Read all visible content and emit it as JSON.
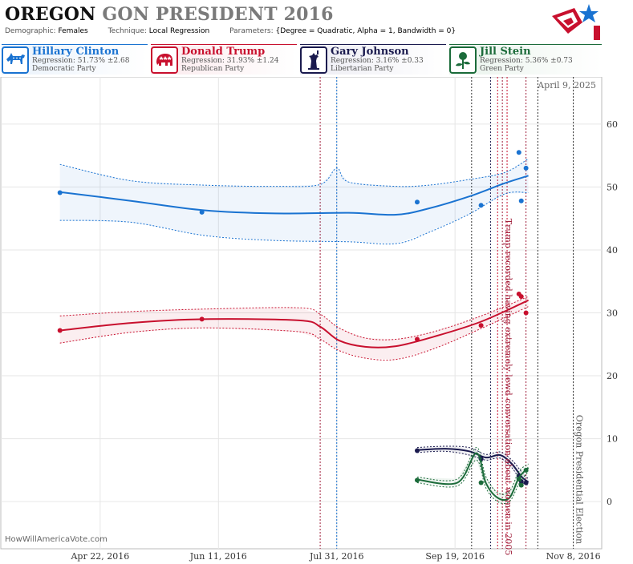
{
  "title": {
    "state": "OREGON",
    "rest": "GON PRESIDENT 2016"
  },
  "params": {
    "demographic_label": "Demographic:",
    "demographic": "Females",
    "technique_label": "Technique:",
    "technique": "Local Regression",
    "parameters_label": "Parameters:",
    "parameters": "{Degree = Quadratic, Alpha = 1, Bandwidth = 0}"
  },
  "candidates": [
    {
      "name": "Hillary Clinton",
      "regression": "Regression: 51.73% ±2.68",
      "party": "Democratic Party",
      "color": "#1a73d1",
      "bg": "#eaf2fb",
      "icon": "donkey-icon"
    },
    {
      "name": "Donald Trump",
      "regression": "Regression: 31.93% ±1.24",
      "party": "Republican Party",
      "color": "#c8102e",
      "bg": "#fbeaed",
      "icon": "elephant-icon"
    },
    {
      "name": "Gary Johnson",
      "regression": "Regression: 3.16% ±0.33",
      "party": "Libertarian Party",
      "color": "#1a1a4e",
      "bg": "#ececf3",
      "icon": "liberty-icon"
    },
    {
      "name": "Jill Stein",
      "regression": "Regression: 5.36% ±0.73",
      "party": "Green Party",
      "color": "#1b6b3a",
      "bg": "#e9f3ec",
      "icon": "rose-icon"
    }
  ],
  "watermark": "HowWillAmericaVote.com",
  "current_date": "April 9, 2025",
  "chart_data": {
    "type": "line",
    "x_axis": {
      "type": "date",
      "ticks": [
        "2016-04-22",
        "2016-06-11",
        "2016-07-31",
        "2016-09-19",
        "2016-11-08"
      ],
      "tick_labels": [
        "Apr 22, 2016",
        "Jun 11, 2016",
        "Jul 31, 2016",
        "Sep 19, 2016",
        "Nov 8, 2016"
      ],
      "range": [
        "2016-03-11",
        "2016-11-20"
      ]
    },
    "y_axis": {
      "ticks": [
        0,
        10,
        20,
        30,
        40,
        50,
        60
      ],
      "range": [
        -7.5,
        67.5
      ],
      "position": "right"
    },
    "grid": true,
    "series": [
      {
        "name": "Hillary Clinton",
        "color": "#1a73d1",
        "points": [
          [
            "2016-04-05",
            49.1
          ],
          [
            "2016-06-04",
            46.0
          ],
          [
            "2016-09-03",
            47.6
          ],
          [
            "2016-09-30",
            47.1
          ],
          [
            "2016-10-16",
            55.5
          ],
          [
            "2016-10-17",
            47.8
          ],
          [
            "2016-10-19",
            53.0
          ]
        ],
        "fit": [
          [
            "2016-04-05",
            49.2
          ],
          [
            "2016-05-05",
            47.8
          ],
          [
            "2016-06-05",
            46.3
          ],
          [
            "2016-07-05",
            45.8
          ],
          [
            "2016-08-05",
            45.9
          ],
          [
            "2016-08-25",
            45.6
          ],
          [
            "2016-09-08",
            46.6
          ],
          [
            "2016-09-25",
            48.5
          ],
          [
            "2016-10-10",
            50.6
          ],
          [
            "2016-10-20",
            51.8
          ]
        ],
        "band_upper": [
          [
            "2016-04-05",
            53.6
          ],
          [
            "2016-05-05",
            51.0
          ],
          [
            "2016-06-05",
            50.3
          ],
          [
            "2016-07-05",
            50.1
          ],
          [
            "2016-07-24",
            50.4
          ],
          [
            "2016-07-31",
            53.0
          ],
          [
            "2016-08-05",
            50.8
          ],
          [
            "2016-08-25",
            50.1
          ],
          [
            "2016-09-08",
            50.3
          ],
          [
            "2016-09-25",
            51.2
          ],
          [
            "2016-10-10",
            52.3
          ],
          [
            "2016-10-20",
            54.5
          ]
        ],
        "band_lower": [
          [
            "2016-04-05",
            44.7
          ],
          [
            "2016-05-05",
            44.4
          ],
          [
            "2016-06-05",
            42.3
          ],
          [
            "2016-07-05",
            41.5
          ],
          [
            "2016-08-05",
            41.3
          ],
          [
            "2016-08-25",
            41.0
          ],
          [
            "2016-09-08",
            42.8
          ],
          [
            "2016-09-25",
            45.7
          ],
          [
            "2016-10-10",
            48.9
          ],
          [
            "2016-10-20",
            49.1
          ]
        ]
      },
      {
        "name": "Donald Trump",
        "color": "#c8102e",
        "points": [
          [
            "2016-04-05",
            27.2
          ],
          [
            "2016-06-04",
            29.0
          ],
          [
            "2016-09-03",
            25.8
          ],
          [
            "2016-09-30",
            28.0
          ],
          [
            "2016-10-16",
            33.0
          ],
          [
            "2016-10-17",
            32.6
          ],
          [
            "2016-10-19",
            30.0
          ]
        ],
        "fit": [
          [
            "2016-04-05",
            27.2
          ],
          [
            "2016-05-05",
            28.4
          ],
          [
            "2016-06-05",
            29.0
          ],
          [
            "2016-07-15",
            28.8
          ],
          [
            "2016-07-24",
            27.8
          ],
          [
            "2016-08-01",
            25.6
          ],
          [
            "2016-08-12",
            24.6
          ],
          [
            "2016-08-25",
            24.7
          ],
          [
            "2016-09-10",
            26.2
          ],
          [
            "2016-09-30",
            28.6
          ],
          [
            "2016-10-20",
            32.0
          ]
        ],
        "band_upper": [
          [
            "2016-04-05",
            29.5
          ],
          [
            "2016-05-05",
            30.2
          ],
          [
            "2016-06-05",
            30.6
          ],
          [
            "2016-07-15",
            30.8
          ],
          [
            "2016-07-24",
            29.8
          ],
          [
            "2016-08-01",
            27.6
          ],
          [
            "2016-08-12",
            26.0
          ],
          [
            "2016-08-25",
            25.8
          ],
          [
            "2016-09-10",
            27.0
          ],
          [
            "2016-09-30",
            29.5
          ],
          [
            "2016-10-20",
            32.6
          ]
        ],
        "band_lower": [
          [
            "2016-04-05",
            25.2
          ],
          [
            "2016-05-05",
            26.9
          ],
          [
            "2016-06-05",
            27.6
          ],
          [
            "2016-07-15",
            27.0
          ],
          [
            "2016-07-24",
            25.8
          ],
          [
            "2016-08-01",
            24.0
          ],
          [
            "2016-08-12",
            22.8
          ],
          [
            "2016-08-25",
            22.6
          ],
          [
            "2016-09-10",
            24.3
          ],
          [
            "2016-09-30",
            27.5
          ],
          [
            "2016-10-20",
            31.0
          ]
        ]
      },
      {
        "name": "Gary Johnson",
        "color": "#1a1a4e",
        "points": [
          [
            "2016-09-03",
            8.1
          ],
          [
            "2016-09-30",
            6.8
          ],
          [
            "2016-10-16",
            4.1
          ],
          [
            "2016-10-17",
            3.2
          ],
          [
            "2016-10-19",
            3.0
          ]
        ],
        "fit": [
          [
            "2016-09-03",
            8.2
          ],
          [
            "2016-09-15",
            8.4
          ],
          [
            "2016-09-25",
            8.0
          ],
          [
            "2016-10-02",
            7.0
          ],
          [
            "2016-10-08",
            7.4
          ],
          [
            "2016-10-13",
            6.0
          ],
          [
            "2016-10-17",
            4.0
          ],
          [
            "2016-10-20",
            3.1
          ]
        ],
        "band_upper": [
          [
            "2016-09-03",
            8.6
          ],
          [
            "2016-09-15",
            8.8
          ],
          [
            "2016-09-25",
            8.6
          ],
          [
            "2016-10-02",
            7.5
          ],
          [
            "2016-10-08",
            7.9
          ],
          [
            "2016-10-13",
            6.6
          ],
          [
            "2016-10-17",
            4.8
          ],
          [
            "2016-10-20",
            3.6
          ]
        ],
        "band_lower": [
          [
            "2016-09-03",
            7.8
          ],
          [
            "2016-09-15",
            8.0
          ],
          [
            "2016-09-25",
            7.4
          ],
          [
            "2016-10-02",
            6.6
          ],
          [
            "2016-10-08",
            6.9
          ],
          [
            "2016-10-13",
            5.4
          ],
          [
            "2016-10-17",
            3.2
          ],
          [
            "2016-10-20",
            2.6
          ]
        ]
      },
      {
        "name": "Jill Stein",
        "color": "#1b6b3a",
        "points": [
          [
            "2016-09-03",
            3.4
          ],
          [
            "2016-09-30",
            3.0
          ],
          [
            "2016-10-16",
            3.6
          ],
          [
            "2016-10-17",
            2.6
          ],
          [
            "2016-10-19",
            5.0
          ]
        ],
        "fit": [
          [
            "2016-09-03",
            3.5
          ],
          [
            "2016-09-20",
            3.0
          ],
          [
            "2016-09-28",
            7.7
          ],
          [
            "2016-10-02",
            3.0
          ],
          [
            "2016-10-07",
            0.6
          ],
          [
            "2016-10-12",
            0.6
          ],
          [
            "2016-10-16",
            3.8
          ],
          [
            "2016-10-20",
            5.4
          ]
        ],
        "band_upper": [
          [
            "2016-09-03",
            3.9
          ],
          [
            "2016-09-20",
            3.6
          ],
          [
            "2016-09-28",
            8.6
          ],
          [
            "2016-10-02",
            4.0
          ],
          [
            "2016-10-07",
            1.4
          ],
          [
            "2016-10-12",
            1.6
          ],
          [
            "2016-10-16",
            4.8
          ],
          [
            "2016-10-20",
            6.0
          ]
        ],
        "band_lower": [
          [
            "2016-09-03",
            3.0
          ],
          [
            "2016-09-20",
            2.5
          ],
          [
            "2016-09-28",
            6.6
          ],
          [
            "2016-10-02",
            2.2
          ],
          [
            "2016-10-07",
            0.0
          ],
          [
            "2016-10-12",
            0.0
          ],
          [
            "2016-10-16",
            2.8
          ],
          [
            "2016-10-20",
            4.8
          ]
        ]
      }
    ],
    "vertical_markers": [
      {
        "date": "2016-07-24",
        "color": "#a0203c"
      },
      {
        "date": "2016-07-31",
        "color": "#1a73d1"
      },
      {
        "date": "2016-09-26",
        "color": "#333333"
      },
      {
        "date": "2016-10-04",
        "color": "#1a1a4e"
      },
      {
        "date": "2016-10-07",
        "color": "#c8102e"
      },
      {
        "date": "2016-10-09",
        "color": "#a0203c"
      },
      {
        "date": "2016-10-11",
        "color": "#c8102e"
      },
      {
        "date": "2016-10-19",
        "color": "#a0203c"
      },
      {
        "date": "2016-10-24",
        "color": "#333333"
      },
      {
        "date": "2016-11-08",
        "color": "#333333"
      }
    ],
    "annotations": [
      {
        "text": "Trump recorded having extremely lewd conversation about women in 2005",
        "date": "2016-10-09",
        "color": "#a0203c"
      },
      {
        "text": "Oregon Presidential Election",
        "date": "2016-11-08",
        "color": "#555555"
      }
    ]
  }
}
